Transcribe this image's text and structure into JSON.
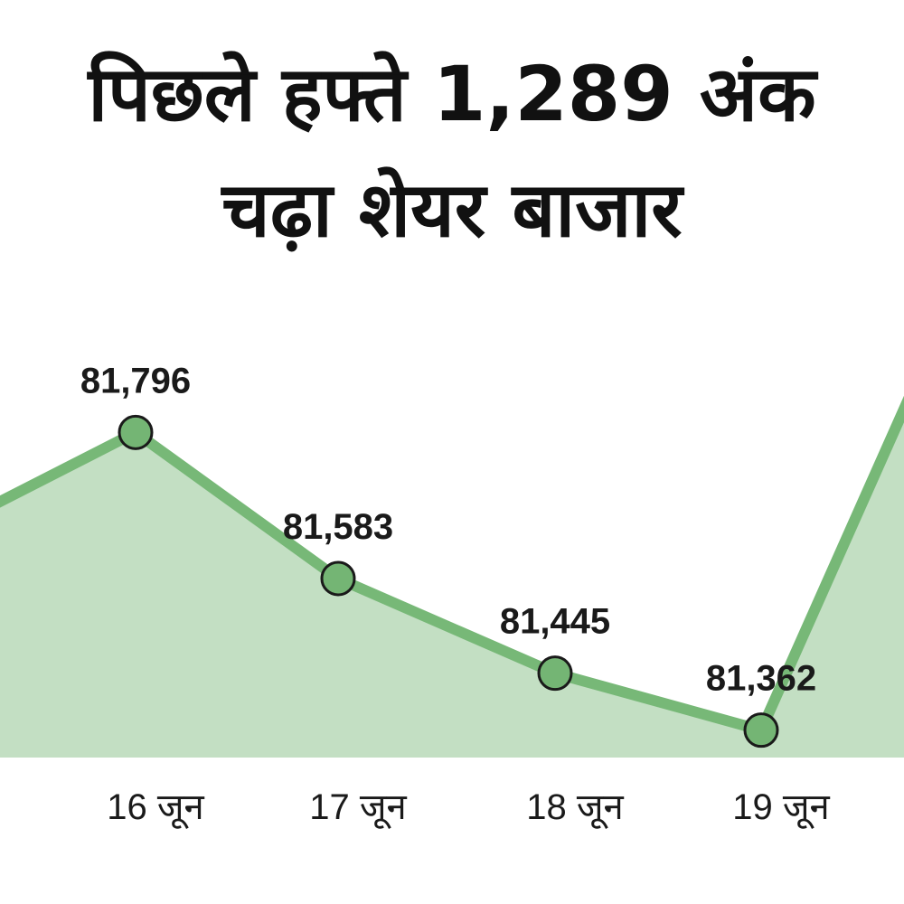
{
  "colors": {
    "area": "#c3dfc3",
    "line": "#77b877",
    "marker": "#74b574",
    "marker_stroke": "#1a1a1a"
  },
  "chart_data": {
    "type": "area",
    "title_lines": [
      "पिछले हफ्ते 1,289 अंक",
      "चढ़ा शेयर बाजार"
    ],
    "categories": [
      "16 जून",
      "17 जून",
      "18 जून",
      "19 जून"
    ],
    "values": [
      81796,
      81583,
      81445,
      81362
    ],
    "value_labels": [
      "81,796",
      "81,583",
      "81,445",
      "81,362"
    ],
    "xlabel": "",
    "ylabel": "",
    "ylim": [
      80700,
      82400
    ],
    "grid": false,
    "legend": "none"
  }
}
